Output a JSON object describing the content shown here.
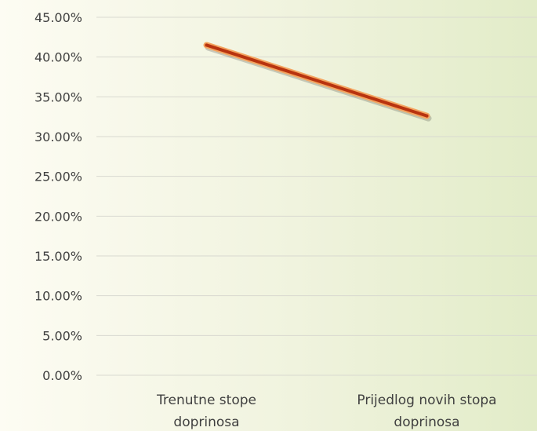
{
  "chart_data": {
    "type": "line",
    "title": "",
    "xlabel": "",
    "ylabel": "",
    "categories": [
      [
        "Trenutne stope",
        "doprinosa"
      ],
      [
        "Prijedlog novih stopa",
        "doprinosa"
      ]
    ],
    "y_ticks": [
      "0.00%",
      "5.00%",
      "10.00%",
      "15.00%",
      "20.00%",
      "25.00%",
      "30.00%",
      "35.00%",
      "40.00%",
      "45.00%"
    ],
    "ylim": [
      0,
      45
    ],
    "grid": true,
    "legend": "none",
    "series": [
      {
        "values": [
          41.5,
          32.6
        ],
        "color": "#b8330f",
        "outline_color": "#f4a460"
      }
    ]
  }
}
